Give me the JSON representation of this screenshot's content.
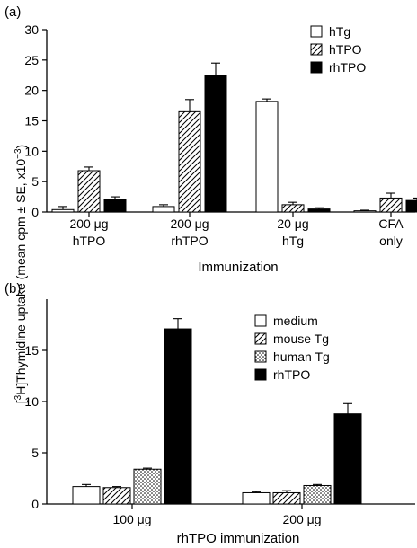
{
  "figure": {
    "ylabel_prefix": "[",
    "ylabel_sup1": "3",
    "ylabel_mid": "H]Thymidine uptake (mean cpm ± SE, x10",
    "ylabel_sup2": "−3",
    "ylabel_suffix": ")"
  },
  "chart_data": [
    {
      "type": "bar",
      "panel_label": "(a)",
      "xlabel": "Immunization",
      "categories": [
        {
          "line1": "200 μg",
          "line2": "hTPO"
        },
        {
          "line1": "200 μg",
          "line2": "rhTPO"
        },
        {
          "line1": "20 μg",
          "line2": "hTg"
        },
        {
          "line1": "CFA",
          "line2": "only"
        }
      ],
      "series": [
        {
          "name": "hTg",
          "pattern": "white",
          "values": [
            0.4,
            0.9,
            18.2,
            0.2
          ],
          "errors": [
            0.5,
            0.3,
            0.4,
            0.1
          ]
        },
        {
          "name": "hTPO",
          "pattern": "hatch",
          "values": [
            6.8,
            16.5,
            1.2,
            2.3
          ],
          "errors": [
            0.6,
            2.0,
            0.4,
            0.8
          ]
        },
        {
          "name": "rhTPO",
          "pattern": "black",
          "values": [
            2.0,
            22.4,
            0.5,
            1.9
          ],
          "errors": [
            0.5,
            2.1,
            0.2,
            0.4
          ]
        }
      ],
      "ylim": [
        0,
        30
      ],
      "yticks": [
        0,
        5,
        10,
        15,
        20,
        25,
        30
      ],
      "legend_position": "top-right"
    },
    {
      "type": "bar",
      "panel_label": "(b)",
      "xlabel": "rhTPO immunization",
      "categories": [
        {
          "line1": "100 μg",
          "line2": ""
        },
        {
          "line1": "200 μg",
          "line2": ""
        }
      ],
      "series": [
        {
          "name": "medium",
          "pattern": "white",
          "values": [
            1.7,
            1.1
          ],
          "errors": [
            0.2,
            0.1
          ]
        },
        {
          "name": "mouse Tg",
          "pattern": "hatch",
          "values": [
            1.6,
            1.1
          ],
          "errors": [
            0.1,
            0.2
          ]
        },
        {
          "name": "human Tg",
          "pattern": "dots",
          "values": [
            3.4,
            1.8
          ],
          "errors": [
            0.1,
            0.1
          ]
        },
        {
          "name": "rhTPO",
          "pattern": "black",
          "values": [
            17.1,
            8.8
          ],
          "errors": [
            1.0,
            1.0
          ]
        }
      ],
      "ylim": [
        0,
        20
      ],
      "yticks": [
        0,
        5,
        10,
        15
      ],
      "legend_position": "top-right"
    }
  ]
}
